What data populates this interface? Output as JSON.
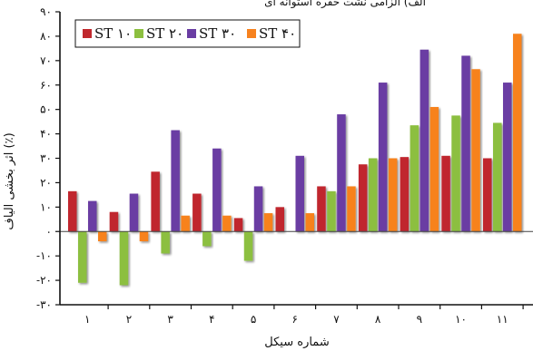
{
  "chart_data": {
    "type": "bar",
    "title": "الف) الزامی نشت حفره استوانه ای",
    "xlabel": "شماره سیکل",
    "ylabel": "اثر بخشی الیاف (٪)",
    "categories": [
      "۱",
      "۲",
      "۳",
      "۴",
      "۵",
      "۶",
      "۷",
      "۸",
      "۹",
      "۱۰",
      "۱۱"
    ],
    "ylim": [
      -30,
      90
    ],
    "yticks": [
      {
        "value": 90,
        "label": "۹۰"
      },
      {
        "value": 80,
        "label": "۸۰"
      },
      {
        "value": 70,
        "label": "۷۰"
      },
      {
        "value": 60,
        "label": "۶۰"
      },
      {
        "value": 50,
        "label": "۵۰"
      },
      {
        "value": 40,
        "label": "۴۰"
      },
      {
        "value": 30,
        "label": "۳۰"
      },
      {
        "value": 20,
        "label": "۲۰"
      },
      {
        "value": 10,
        "label": "۱۰"
      },
      {
        "value": 0,
        "label": "۰"
      },
      {
        "value": -10,
        "label": "-۱۰"
      },
      {
        "value": -20,
        "label": "-۲۰"
      },
      {
        "value": -30,
        "label": "-۳۰"
      }
    ],
    "legend_position": "top-left",
    "grid": false,
    "series": [
      {
        "name": "ST ۱۰",
        "color": "#c0282d",
        "values": [
          16.5,
          8,
          24.5,
          15.5,
          5.5,
          10,
          18.5,
          27.5,
          30.5,
          31,
          30
        ]
      },
      {
        "name": "ST ۲۰",
        "color": "#8cbf3f",
        "values": [
          -21,
          -22,
          -9,
          -6,
          -12,
          null,
          16.5,
          30,
          43.5,
          47.5,
          44.5
        ]
      },
      {
        "name": "ST ۳۰",
        "color": "#6a3da3",
        "values": [
          12.5,
          15.5,
          41.5,
          34,
          18.5,
          31,
          48,
          61,
          74.5,
          72,
          61
        ]
      },
      {
        "name": "ST ۴۰",
        "color": "#f7821e",
        "values": [
          -4,
          -4,
          6.5,
          6.5,
          7.5,
          7.5,
          18.5,
          30,
          51,
          66.5,
          81
        ]
      }
    ]
  }
}
